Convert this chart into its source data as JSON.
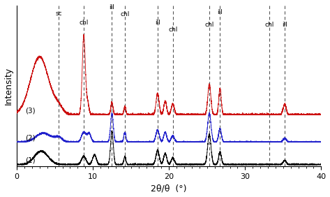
{
  "xlabel": "2θ/θ  (°)",
  "ylabel": "Intensity",
  "xlim": [
    0,
    40
  ],
  "x_ticks": [
    0,
    10,
    20,
    30,
    40
  ],
  "dashed_lines": [
    5.5,
    8.8,
    12.5,
    14.2,
    18.5,
    20.5,
    25.3,
    26.7,
    33.2,
    35.2
  ],
  "label_map": {
    "5.5": "sc",
    "8.8": "chl",
    "12.5": "ill",
    "14.2": "chl",
    "18.5": "ill",
    "20.5": "chl",
    "25.3": "chl",
    "26.7": "ill",
    "33.2": "chl",
    "35.2": "ill"
  },
  "colors": {
    "curve1": "#000000",
    "curve2": "#2222cc",
    "curve3": "#cc1111"
  },
  "offsets": [
    0.0,
    0.28,
    0.62
  ],
  "background_color": "#ffffff"
}
